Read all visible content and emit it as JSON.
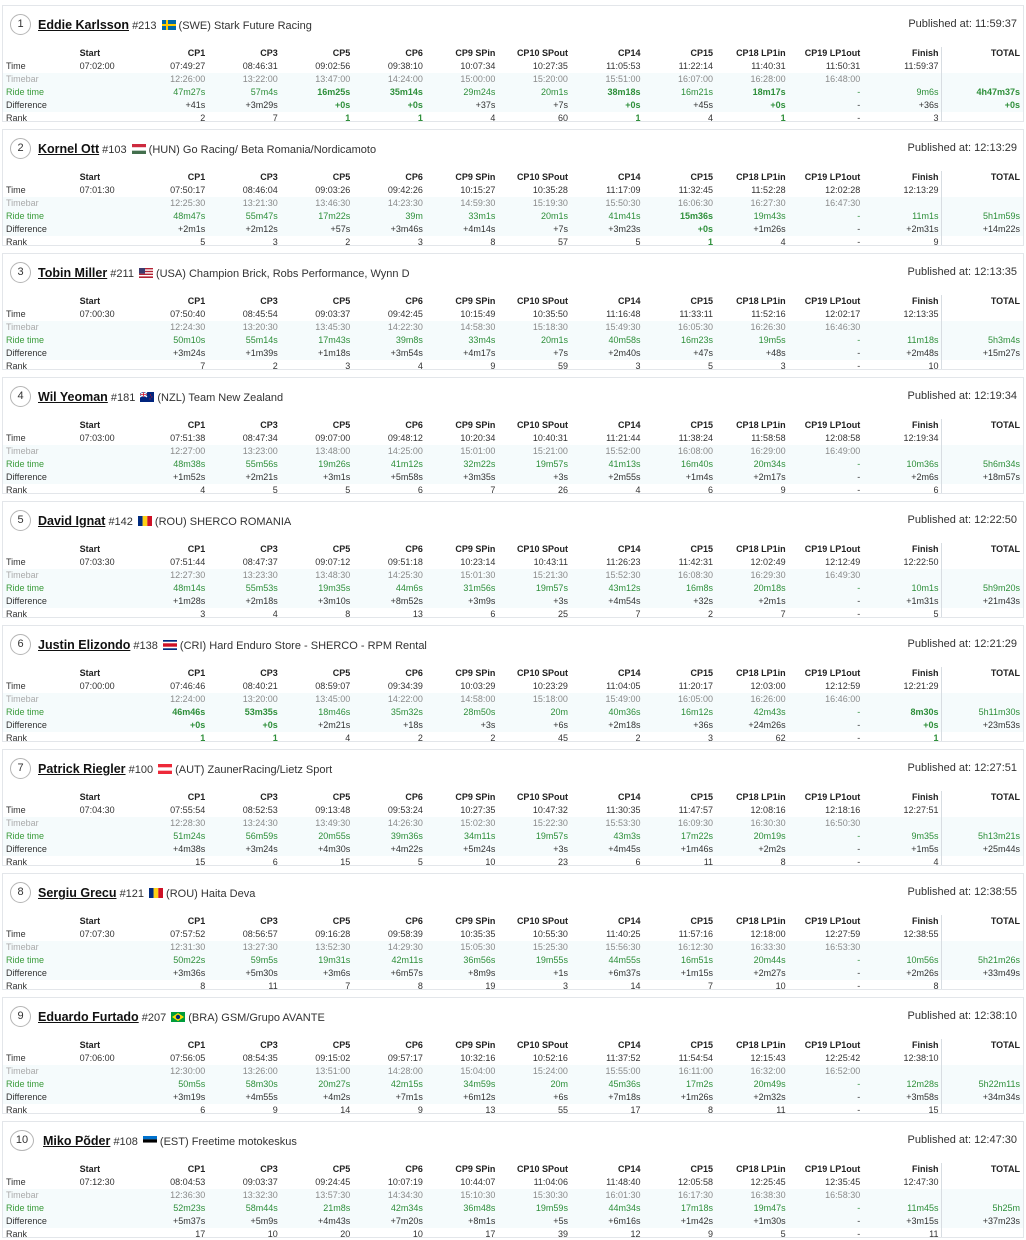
{
  "header_labels": {
    "published_prefix": "Published at:",
    "row_time": "Time",
    "row_timebar": "Timebar",
    "row_ride": "Ride time",
    "row_diff": "Difference",
    "row_rank": "Rank"
  },
  "columns": [
    "Start",
    "CP1",
    "CP3",
    "CP5",
    "CP6",
    "CP9 SPin",
    "CP10 SPout",
    "CP14",
    "CP15",
    "CP18 LP1in",
    "CP19 LP1out",
    "Finish",
    "TOTAL"
  ],
  "riders": [
    {
      "pos": "1",
      "name": "Eddie Karlsson",
      "number": "#213",
      "flag": "swe",
      "country": "(SWE)",
      "team": "Stark Future Racing",
      "published": "11:59:37",
      "time": [
        "07:02:00",
        "07:49:27",
        "08:46:31",
        "09:02:56",
        "09:38:10",
        "10:07:34",
        "10:27:35",
        "11:05:53",
        "11:22:14",
        "11:40:31",
        "11:50:31",
        "11:59:37",
        ""
      ],
      "timebar": [
        "",
        "12:26:00",
        "13:22:00",
        "13:47:00",
        "14:24:00",
        "15:00:00",
        "15:20:00",
        "15:51:00",
        "16:07:00",
        "16:28:00",
        "16:48:00",
        "",
        ""
      ],
      "ride": [
        "",
        "47m27s",
        "57m4s",
        "16m25s",
        "35m14s",
        "29m24s",
        "20m1s",
        "38m18s",
        "16m21s",
        "18m17s",
        "-",
        "9m6s",
        "4h47m37s"
      ],
      "diff": [
        "",
        "+41s",
        "+3m29s",
        "+0s",
        "+0s",
        "+37s",
        "+7s",
        "+0s",
        "+45s",
        "+0s",
        "-",
        "+36s",
        "+0s"
      ],
      "rank": [
        "",
        "2",
        "7",
        "1",
        "1",
        "4",
        "60",
        "1",
        "4",
        "1",
        "-",
        "3",
        ""
      ]
    },
    {
      "pos": "2",
      "name": "Kornel Ott",
      "number": "#103",
      "flag": "hun",
      "country": "(HUN)",
      "team": "Go Racing/ Beta Romania/Nordicamoto",
      "published": "12:13:29",
      "time": [
        "07:01:30",
        "07:50:17",
        "08:46:04",
        "09:03:26",
        "09:42:26",
        "10:15:27",
        "10:35:28",
        "11:17:09",
        "11:32:45",
        "11:52:28",
        "12:02:28",
        "12:13:29",
        ""
      ],
      "timebar": [
        "",
        "12:25:30",
        "13:21:30",
        "13:46:30",
        "14:23:30",
        "14:59:30",
        "15:19:30",
        "15:50:30",
        "16:06:30",
        "16:27:30",
        "16:47:30",
        "",
        ""
      ],
      "ride": [
        "",
        "48m47s",
        "55m47s",
        "17m22s",
        "39m",
        "33m1s",
        "20m1s",
        "41m41s",
        "15m36s",
        "19m43s",
        "-",
        "11m1s",
        "5h1m59s"
      ],
      "diff": [
        "",
        "+2m1s",
        "+2m12s",
        "+57s",
        "+3m46s",
        "+4m14s",
        "+7s",
        "+3m23s",
        "+0s",
        "+1m26s",
        "-",
        "+2m31s",
        "+14m22s"
      ],
      "rank": [
        "",
        "5",
        "3",
        "2",
        "3",
        "8",
        "57",
        "5",
        "1",
        "4",
        "-",
        "9",
        ""
      ]
    },
    {
      "pos": "3",
      "name": "Tobin Miller",
      "number": "#211",
      "flag": "usa",
      "country": "(USA)",
      "team": "Champion Brick, Robs Performance, Wynn D",
      "published": "12:13:35",
      "time": [
        "07:00:30",
        "07:50:40",
        "08:45:54",
        "09:03:37",
        "09:42:45",
        "10:15:49",
        "10:35:50",
        "11:16:48",
        "11:33:11",
        "11:52:16",
        "12:02:17",
        "12:13:35",
        ""
      ],
      "timebar": [
        "",
        "12:24:30",
        "13:20:30",
        "13:45:30",
        "14:22:30",
        "14:58:30",
        "15:18:30",
        "15:49:30",
        "16:05:30",
        "16:26:30",
        "16:46:30",
        "",
        ""
      ],
      "ride": [
        "",
        "50m10s",
        "55m14s",
        "17m43s",
        "39m8s",
        "33m4s",
        "20m1s",
        "40m58s",
        "16m23s",
        "19m5s",
        "-",
        "11m18s",
        "5h3m4s"
      ],
      "diff": [
        "",
        "+3m24s",
        "+1m39s",
        "+1m18s",
        "+3m54s",
        "+4m17s",
        "+7s",
        "+2m40s",
        "+47s",
        "+48s",
        "-",
        "+2m48s",
        "+15m27s"
      ],
      "rank": [
        "",
        "7",
        "2",
        "3",
        "4",
        "9",
        "59",
        "3",
        "5",
        "3",
        "-",
        "10",
        ""
      ]
    },
    {
      "pos": "4",
      "name": "Wil Yeoman",
      "number": "#181",
      "flag": "nzl",
      "country": "(NZL)",
      "team": "Team New Zealand",
      "published": "12:19:34",
      "time": [
        "07:03:00",
        "07:51:38",
        "08:47:34",
        "09:07:00",
        "09:48:12",
        "10:20:34",
        "10:40:31",
        "11:21:44",
        "11:38:24",
        "11:58:58",
        "12:08:58",
        "12:19:34",
        ""
      ],
      "timebar": [
        "",
        "12:27:00",
        "13:23:00",
        "13:48:00",
        "14:25:00",
        "15:01:00",
        "15:21:00",
        "15:52:00",
        "16:08:00",
        "16:29:00",
        "16:49:00",
        "",
        ""
      ],
      "ride": [
        "",
        "48m38s",
        "55m56s",
        "19m26s",
        "41m12s",
        "32m22s",
        "19m57s",
        "41m13s",
        "16m40s",
        "20m34s",
        "-",
        "10m36s",
        "5h6m34s"
      ],
      "diff": [
        "",
        "+1m52s",
        "+2m21s",
        "+3m1s",
        "+5m58s",
        "+3m35s",
        "+3s",
        "+2m55s",
        "+1m4s",
        "+2m17s",
        "-",
        "+2m6s",
        "+18m57s"
      ],
      "rank": [
        "",
        "4",
        "5",
        "5",
        "6",
        "7",
        "26",
        "4",
        "6",
        "9",
        "-",
        "6",
        ""
      ]
    },
    {
      "pos": "5",
      "name": "David Ignat",
      "number": "#142",
      "flag": "rou",
      "country": "(ROU)",
      "team": "SHERCO ROMANIA",
      "published": "12:22:50",
      "time": [
        "07:03:30",
        "07:51:44",
        "08:47:37",
        "09:07:12",
        "09:51:18",
        "10:23:14",
        "10:43:11",
        "11:26:23",
        "11:42:31",
        "12:02:49",
        "12:12:49",
        "12:22:50",
        ""
      ],
      "timebar": [
        "",
        "12:27:30",
        "13:23:30",
        "13:48:30",
        "14:25:30",
        "15:01:30",
        "15:21:30",
        "15:52:30",
        "16:08:30",
        "16:29:30",
        "16:49:30",
        "",
        ""
      ],
      "ride": [
        "",
        "48m14s",
        "55m53s",
        "19m35s",
        "44m6s",
        "31m56s",
        "19m57s",
        "43m12s",
        "16m8s",
        "20m18s",
        "-",
        "10m1s",
        "5h9m20s"
      ],
      "diff": [
        "",
        "+1m28s",
        "+2m18s",
        "+3m10s",
        "+8m52s",
        "+3m9s",
        "+3s",
        "+4m54s",
        "+32s",
        "+2m1s",
        "-",
        "+1m31s",
        "+21m43s"
      ],
      "rank": [
        "",
        "3",
        "4",
        "8",
        "13",
        "6",
        "25",
        "7",
        "2",
        "7",
        "-",
        "5",
        ""
      ]
    },
    {
      "pos": "6",
      "name": "Justin Elizondo",
      "number": "#138",
      "flag": "cri",
      "country": "(CRI)",
      "team": "Hard Enduro Store - SHERCO - RPM Rental",
      "published": "12:21:29",
      "time": [
        "07:00:00",
        "07:46:46",
        "08:40:21",
        "08:59:07",
        "09:34:39",
        "10:03:29",
        "10:23:29",
        "11:04:05",
        "11:20:17",
        "12:03:00",
        "12:12:59",
        "12:21:29",
        ""
      ],
      "timebar": [
        "",
        "12:24:00",
        "13:20:00",
        "13:45:00",
        "14:22:00",
        "14:58:00",
        "15:18:00",
        "15:49:00",
        "16:05:00",
        "16:26:00",
        "16:46:00",
        "",
        ""
      ],
      "ride": [
        "",
        "46m46s",
        "53m35s",
        "18m46s",
        "35m32s",
        "28m50s",
        "20m",
        "40m36s",
        "16m12s",
        "42m43s",
        "-",
        "8m30s",
        "5h11m30s"
      ],
      "diff": [
        "",
        "+0s",
        "+0s",
        "+2m21s",
        "+18s",
        "+3s",
        "+6s",
        "+2m18s",
        "+36s",
        "+24m26s",
        "-",
        "+0s",
        "+23m53s"
      ],
      "rank": [
        "",
        "1",
        "1",
        "4",
        "2",
        "2",
        "45",
        "2",
        "3",
        "62",
        "-",
        "1",
        ""
      ]
    },
    {
      "pos": "7",
      "name": "Patrick Riegler",
      "number": "#100",
      "flag": "aut",
      "country": "(AUT)",
      "team": "ZaunerRacing/Lietz Sport",
      "published": "12:27:51",
      "time": [
        "07:04:30",
        "07:55:54",
        "08:52:53",
        "09:13:48",
        "09:53:24",
        "10:27:35",
        "10:47:32",
        "11:30:35",
        "11:47:57",
        "12:08:16",
        "12:18:16",
        "12:27:51",
        ""
      ],
      "timebar": [
        "",
        "12:28:30",
        "13:24:30",
        "13:49:30",
        "14:26:30",
        "15:02:30",
        "15:22:30",
        "15:53:30",
        "16:09:30",
        "16:30:30",
        "16:50:30",
        "",
        ""
      ],
      "ride": [
        "",
        "51m24s",
        "56m59s",
        "20m55s",
        "39m36s",
        "34m11s",
        "19m57s",
        "43m3s",
        "17m22s",
        "20m19s",
        "-",
        "9m35s",
        "5h13m21s"
      ],
      "diff": [
        "",
        "+4m38s",
        "+3m24s",
        "+4m30s",
        "+4m22s",
        "+5m24s",
        "+3s",
        "+4m45s",
        "+1m46s",
        "+2m2s",
        "-",
        "+1m5s",
        "+25m44s"
      ],
      "rank": [
        "",
        "15",
        "6",
        "15",
        "5",
        "10",
        "23",
        "6",
        "11",
        "8",
        "-",
        "4",
        ""
      ]
    },
    {
      "pos": "8",
      "name": "Sergiu Grecu",
      "number": "#121",
      "flag": "rou",
      "country": "(ROU)",
      "team": "Haita Deva",
      "published": "12:38:55",
      "time": [
        "07:07:30",
        "07:57:52",
        "08:56:57",
        "09:16:28",
        "09:58:39",
        "10:35:35",
        "10:55:30",
        "11:40:25",
        "11:57:16",
        "12:18:00",
        "12:27:59",
        "12:38:55",
        ""
      ],
      "timebar": [
        "",
        "12:31:30",
        "13:27:30",
        "13:52:30",
        "14:29:30",
        "15:05:30",
        "15:25:30",
        "15:56:30",
        "16:12:30",
        "16:33:30",
        "16:53:30",
        "",
        ""
      ],
      "ride": [
        "",
        "50m22s",
        "59m5s",
        "19m31s",
        "42m11s",
        "36m56s",
        "19m55s",
        "44m55s",
        "16m51s",
        "20m44s",
        "-",
        "10m56s",
        "5h21m26s"
      ],
      "diff": [
        "",
        "+3m36s",
        "+5m30s",
        "+3m6s",
        "+6m57s",
        "+8m9s",
        "+1s",
        "+6m37s",
        "+1m15s",
        "+2m27s",
        "-",
        "+2m26s",
        "+33m49s"
      ],
      "rank": [
        "",
        "8",
        "11",
        "7",
        "8",
        "19",
        "3",
        "14",
        "7",
        "10",
        "-",
        "8",
        ""
      ]
    },
    {
      "pos": "9",
      "name": "Eduardo Furtado",
      "number": "#207",
      "flag": "bra",
      "country": "(BRA)",
      "team": "GSM/Grupo AVANTE",
      "published": "12:38:10",
      "time": [
        "07:06:00",
        "07:56:05",
        "08:54:35",
        "09:15:02",
        "09:57:17",
        "10:32:16",
        "10:52:16",
        "11:37:52",
        "11:54:54",
        "12:15:43",
        "12:25:42",
        "12:38:10",
        ""
      ],
      "timebar": [
        "",
        "12:30:00",
        "13:26:00",
        "13:51:00",
        "14:28:00",
        "15:04:00",
        "15:24:00",
        "15:55:00",
        "16:11:00",
        "16:32:00",
        "16:52:00",
        "",
        ""
      ],
      "ride": [
        "",
        "50m5s",
        "58m30s",
        "20m27s",
        "42m15s",
        "34m59s",
        "20m",
        "45m36s",
        "17m2s",
        "20m49s",
        "-",
        "12m28s",
        "5h22m11s"
      ],
      "diff": [
        "",
        "+3m19s",
        "+4m55s",
        "+4m2s",
        "+7m1s",
        "+6m12s",
        "+6s",
        "+7m18s",
        "+1m26s",
        "+2m32s",
        "-",
        "+3m58s",
        "+34m34s"
      ],
      "rank": [
        "",
        "6",
        "9",
        "14",
        "9",
        "13",
        "55",
        "17",
        "8",
        "11",
        "-",
        "15",
        ""
      ]
    },
    {
      "pos": "10",
      "name": "Miko Põder",
      "number": "#108",
      "flag": "est",
      "country": "(EST)",
      "team": "Freetime motokeskus",
      "published": "12:47:30",
      "time": [
        "07:12:30",
        "08:04:53",
        "09:03:37",
        "09:24:45",
        "10:07:19",
        "10:44:07",
        "11:04:06",
        "11:48:40",
        "12:05:58",
        "12:25:45",
        "12:35:45",
        "12:47:30",
        ""
      ],
      "timebar": [
        "",
        "12:36:30",
        "13:32:30",
        "13:57:30",
        "14:34:30",
        "15:10:30",
        "15:30:30",
        "16:01:30",
        "16:17:30",
        "16:38:30",
        "16:58:30",
        "",
        ""
      ],
      "ride": [
        "",
        "52m23s",
        "58m44s",
        "21m8s",
        "42m34s",
        "36m48s",
        "19m59s",
        "44m34s",
        "17m18s",
        "19m47s",
        "-",
        "11m45s",
        "5h25m"
      ],
      "diff": [
        "",
        "+5m37s",
        "+5m9s",
        "+4m43s",
        "+7m20s",
        "+8m1s",
        "+5s",
        "+6m16s",
        "+1m42s",
        "+1m30s",
        "-",
        "+3m15s",
        "+37m23s"
      ],
      "rank": [
        "",
        "17",
        "10",
        "20",
        "10",
        "17",
        "39",
        "12",
        "9",
        "5",
        "-",
        "11",
        ""
      ]
    }
  ],
  "colors": {
    "best_green": "#2e8f3a",
    "timebar_gray": "#8a8a8a",
    "row_tint": "#f5fbfc"
  }
}
